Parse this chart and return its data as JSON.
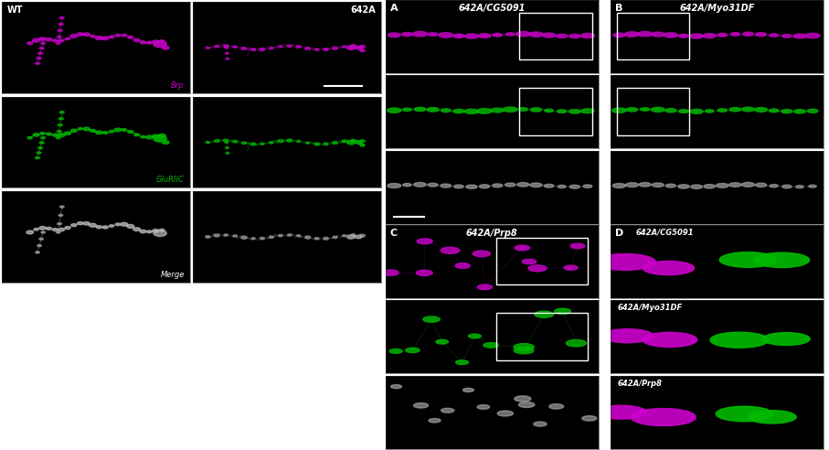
{
  "bg_color": "#000000",
  "fig_bg": "#ffffff",
  "magenta_color": "#cc00cc",
  "green_color": "#00bb00",
  "white_color": "#ffffff",
  "gray_color": "#999999",
  "font_sizes": {
    "panel_label": 8,
    "title": 7,
    "channel_label": 6,
    "wt_label": 7,
    "subtitle": 6
  },
  "panel_D_subtitles": [
    "642A/CG5091",
    "642A/Myo31DF",
    "642A/Prp8"
  ],
  "panel_A_title": "642A/CG5091",
  "panel_B_title": "642A/Myo31DF",
  "panel_C_title": "642A/Prp8",
  "wt_label": "WT",
  "mut_label": "642A",
  "brp_label": "Brp",
  "glu_label": "GluRIIC",
  "merge_label": "Merge",
  "panel_labels": [
    "A",
    "B",
    "C",
    "D"
  ]
}
